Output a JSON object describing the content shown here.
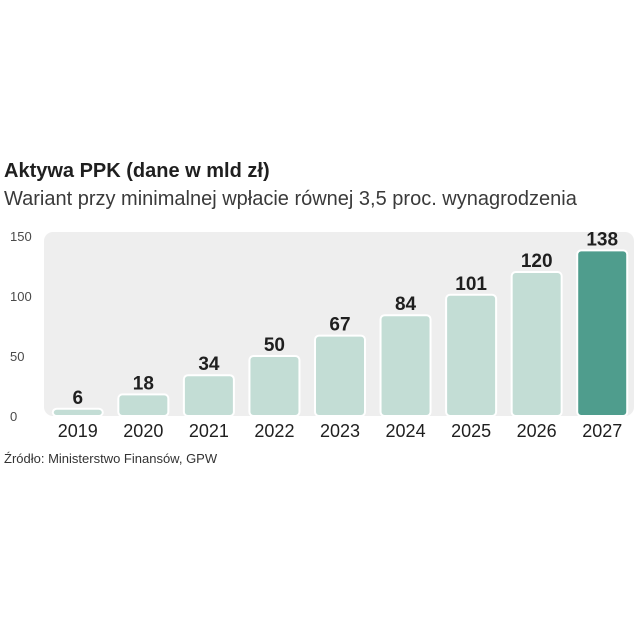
{
  "title": "Aktywa PPK (dane w mld zł)",
  "subtitle": "Wariant przy minimalnej wpłacie równej 3,5 proc. wynagrodzenia",
  "source": "Źródło: Ministerstwo Finansów, GPW",
  "colors": {
    "bar": "#c3ddd5",
    "bar_highlight": "#4f9d8d",
    "bar_stroke": "#ffffff",
    "plot_background": "#eeeeee",
    "text": "#1f1f1f"
  },
  "chart_data": {
    "type": "bar",
    "title": "Aktywa PPK (dane w mld zł)",
    "subtitle": "Wariant przy minimalnej wpłacie równej 3,5 proc. wynagrodzenia",
    "xlabel": "",
    "ylabel": "",
    "categories": [
      "2019",
      "2020",
      "2021",
      "2022",
      "2023",
      "2024",
      "2025",
      "2026",
      "2027"
    ],
    "values": [
      6,
      18,
      34,
      50,
      67,
      84,
      101,
      120,
      138
    ],
    "data_labels": [
      "6",
      "18",
      "34",
      "50",
      "67",
      "84",
      "101",
      "120",
      "138"
    ],
    "highlight_index": 8,
    "ylim": [
      0,
      150
    ],
    "yticks": [
      0,
      50,
      100,
      150
    ],
    "grid": false,
    "legend": "none"
  }
}
